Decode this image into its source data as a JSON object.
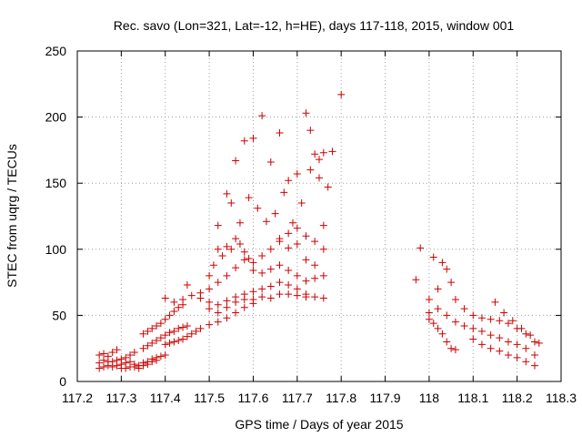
{
  "chart_data": {
    "type": "scatter",
    "title": "Rec. savo (Lon=321, Lat=-12, h=HE), days 117-118, 2015, window 001",
    "xlabel": "GPS time / Days of year 2015",
    "ylabel": "STEC from uqrg / TECUs",
    "xlim": [
      117.2,
      118.3
    ],
    "ylim": [
      0,
      250
    ],
    "xticks": [
      "117.2",
      "117.3",
      "117.4",
      "117.5",
      "117.6",
      "117.7",
      "117.8",
      "117.9",
      "118",
      "118.1",
      "118.2",
      "118.3"
    ],
    "yticks": [
      "0",
      "50",
      "100",
      "150",
      "200",
      "250"
    ],
    "grid": true,
    "marker": "plus",
    "color": "#cc0000",
    "points": [
      [
        117.25,
        20
      ],
      [
        117.26,
        21
      ],
      [
        117.27,
        19
      ],
      [
        117.28,
        22
      ],
      [
        117.29,
        24
      ],
      [
        117.25,
        14
      ],
      [
        117.26,
        16
      ],
      [
        117.27,
        15
      ],
      [
        117.28,
        15
      ],
      [
        117.29,
        16
      ],
      [
        117.3,
        17
      ],
      [
        117.31,
        18
      ],
      [
        117.32,
        20
      ],
      [
        117.33,
        22
      ],
      [
        117.25,
        10
      ],
      [
        117.26,
        11
      ],
      [
        117.27,
        12
      ],
      [
        117.28,
        11
      ],
      [
        117.29,
        12
      ],
      [
        117.3,
        13
      ],
      [
        117.31,
        14
      ],
      [
        117.32,
        15
      ],
      [
        117.33,
        13
      ],
      [
        117.34,
        12
      ],
      [
        117.35,
        14
      ],
      [
        117.36,
        15
      ],
      [
        117.37,
        17
      ],
      [
        117.38,
        18
      ],
      [
        117.39,
        19
      ],
      [
        117.4,
        20
      ],
      [
        117.3,
        10
      ],
      [
        117.31,
        10
      ],
      [
        117.32,
        11
      ],
      [
        117.33,
        11
      ],
      [
        117.34,
        10
      ],
      [
        117.35,
        12
      ],
      [
        117.36,
        13
      ],
      [
        117.37,
        15
      ],
      [
        117.38,
        16
      ],
      [
        117.35,
        25
      ],
      [
        117.36,
        27
      ],
      [
        117.37,
        29
      ],
      [
        117.38,
        31
      ],
      [
        117.39,
        33
      ],
      [
        117.4,
        35
      ],
      [
        117.41,
        37
      ],
      [
        117.42,
        38
      ],
      [
        117.43,
        40
      ],
      [
        117.44,
        41
      ],
      [
        117.45,
        42
      ],
      [
        117.35,
        36
      ],
      [
        117.36,
        38
      ],
      [
        117.37,
        40
      ],
      [
        117.38,
        42
      ],
      [
        117.39,
        44
      ],
      [
        117.4,
        47
      ],
      [
        117.41,
        50
      ],
      [
        117.42,
        53
      ],
      [
        117.43,
        56
      ],
      [
        117.44,
        58
      ],
      [
        117.4,
        28
      ],
      [
        117.41,
        29
      ],
      [
        117.42,
        30
      ],
      [
        117.43,
        31
      ],
      [
        117.44,
        32
      ],
      [
        117.45,
        34
      ],
      [
        117.46,
        36
      ],
      [
        117.47,
        38
      ],
      [
        117.48,
        40
      ],
      [
        117.5,
        43
      ],
      [
        117.52,
        45
      ],
      [
        117.54,
        48
      ],
      [
        117.56,
        52
      ],
      [
        117.58,
        56
      ],
      [
        117.6,
        59
      ],
      [
        117.4,
        63
      ],
      [
        117.42,
        60
      ],
      [
        117.44,
        62
      ],
      [
        117.46,
        65
      ],
      [
        117.48,
        63
      ],
      [
        117.5,
        60
      ],
      [
        117.52,
        58
      ],
      [
        117.54,
        61
      ],
      [
        117.56,
        64
      ],
      [
        117.58,
        66
      ],
      [
        117.6,
        68
      ],
      [
        117.62,
        70
      ],
      [
        117.64,
        72
      ],
      [
        117.66,
        75
      ],
      [
        117.68,
        73
      ],
      [
        117.7,
        70
      ],
      [
        117.72,
        66
      ],
      [
        117.74,
        64
      ],
      [
        117.76,
        63
      ],
      [
        117.45,
        73
      ],
      [
        117.48,
        67
      ],
      [
        117.5,
        70
      ],
      [
        117.52,
        75
      ],
      [
        117.54,
        80
      ],
      [
        117.56,
        86
      ],
      [
        117.58,
        92
      ],
      [
        117.6,
        84
      ],
      [
        117.62,
        82
      ],
      [
        117.64,
        85
      ],
      [
        117.66,
        88
      ],
      [
        117.68,
        84
      ],
      [
        117.7,
        80
      ],
      [
        117.72,
        76
      ],
      [
        117.74,
        78
      ],
      [
        117.76,
        80
      ],
      [
        117.5,
        80
      ],
      [
        117.51,
        88
      ],
      [
        117.52,
        100
      ],
      [
        117.53,
        95
      ],
      [
        117.54,
        102
      ],
      [
        117.55,
        100
      ],
      [
        117.56,
        108
      ],
      [
        117.57,
        104
      ],
      [
        117.58,
        98
      ],
      [
        117.59,
        93
      ],
      [
        117.6,
        90
      ],
      [
        117.62,
        95
      ],
      [
        117.64,
        100
      ],
      [
        117.66,
        108
      ],
      [
        117.68,
        112
      ],
      [
        117.7,
        116
      ],
      [
        117.72,
        110
      ],
      [
        117.74,
        106
      ],
      [
        117.76,
        100
      ],
      [
        117.52,
        118
      ],
      [
        117.54,
        142
      ],
      [
        117.56,
        167
      ],
      [
        117.58,
        182
      ],
      [
        117.6,
        184
      ],
      [
        117.62,
        201
      ],
      [
        117.64,
        166
      ],
      [
        117.66,
        188
      ],
      [
        117.68,
        152
      ],
      [
        117.7,
        157
      ],
      [
        117.72,
        203
      ],
      [
        117.73,
        190
      ],
      [
        117.74,
        172
      ],
      [
        117.75,
        168
      ],
      [
        117.76,
        173
      ],
      [
        117.78,
        174
      ],
      [
        117.55,
        135
      ],
      [
        117.57,
        120
      ],
      [
        117.59,
        139
      ],
      [
        117.61,
        131
      ],
      [
        117.63,
        121
      ],
      [
        117.65,
        127
      ],
      [
        117.67,
        143
      ],
      [
        117.69,
        120
      ],
      [
        117.71,
        135
      ],
      [
        117.73,
        160
      ],
      [
        117.75,
        154
      ],
      [
        117.77,
        147
      ],
      [
        117.66,
        106
      ],
      [
        117.68,
        101
      ],
      [
        117.7,
        104
      ],
      [
        117.72,
        92
      ],
      [
        117.74,
        88
      ],
      [
        117.76,
        118
      ],
      [
        117.5,
        55
      ],
      [
        117.52,
        52
      ],
      [
        117.54,
        56
      ],
      [
        117.56,
        60
      ],
      [
        117.58,
        62
      ],
      [
        117.6,
        62
      ],
      [
        117.62,
        64
      ],
      [
        117.64,
        63
      ],
      [
        117.66,
        66
      ],
      [
        117.68,
        66
      ],
      [
        117.7,
        65
      ],
      [
        117.72,
        64
      ],
      [
        117.8,
        217
      ],
      [
        117.97,
        77
      ],
      [
        117.98,
        101
      ],
      [
        118.0,
        62
      ],
      [
        118.01,
        94
      ],
      [
        118.02,
        70
      ],
      [
        118.03,
        90
      ],
      [
        118.04,
        85
      ],
      [
        118.05,
        75
      ],
      [
        118.06,
        62
      ],
      [
        118.0,
        47
      ],
      [
        118.01,
        44
      ],
      [
        118.02,
        40
      ],
      [
        118.03,
        36
      ],
      [
        118.04,
        30
      ],
      [
        118.05,
        25
      ],
      [
        118.06,
        24
      ],
      [
        118.0,
        52
      ],
      [
        118.02,
        55
      ],
      [
        118.04,
        50
      ],
      [
        118.06,
        45
      ],
      [
        118.08,
        42
      ],
      [
        118.1,
        40
      ],
      [
        118.12,
        38
      ],
      [
        118.14,
        35
      ],
      [
        118.16,
        33
      ],
      [
        118.18,
        30
      ],
      [
        118.2,
        28
      ],
      [
        118.22,
        25
      ],
      [
        118.24,
        20
      ],
      [
        118.08,
        55
      ],
      [
        118.1,
        50
      ],
      [
        118.12,
        48
      ],
      [
        118.14,
        47
      ],
      [
        118.16,
        46
      ],
      [
        118.18,
        44
      ],
      [
        118.2,
        40
      ],
      [
        118.22,
        36
      ],
      [
        118.24,
        30
      ],
      [
        118.1,
        32
      ],
      [
        118.12,
        28
      ],
      [
        118.14,
        25
      ],
      [
        118.16,
        23
      ],
      [
        118.18,
        20
      ],
      [
        118.2,
        18
      ],
      [
        118.22,
        15
      ],
      [
        118.24,
        12
      ],
      [
        118.15,
        60
      ],
      [
        118.17,
        52
      ],
      [
        118.19,
        46
      ],
      [
        118.21,
        40
      ],
      [
        118.23,
        35
      ],
      [
        118.25,
        29
      ]
    ]
  }
}
